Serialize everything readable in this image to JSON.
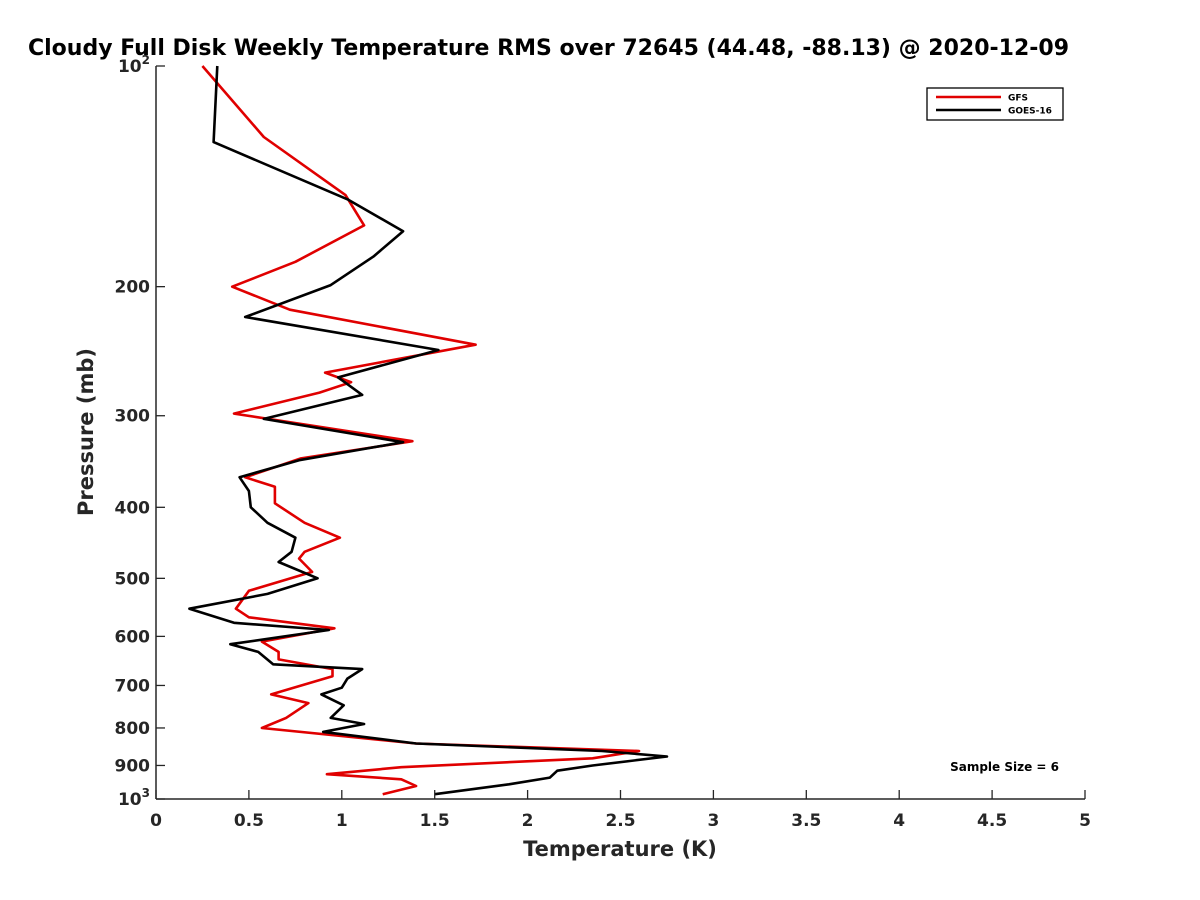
{
  "chart_data": {
    "type": "line",
    "title": "Cloudy Full Disk Weekly Temperature RMS over 72645 (44.48, -88.13) @ 2020-12-09",
    "xlabel": "Temperature (K)",
    "ylabel": "Pressure (mb)",
    "xlim": [
      0,
      5
    ],
    "ylim": [
      100,
      1000
    ],
    "y_scale": "log",
    "y_reversed": true,
    "grid": false,
    "legend_position": "top-right",
    "x_ticks": [
      "0",
      "0.5",
      "1",
      "1.5",
      "2",
      "2.5",
      "3",
      "3.5",
      "4",
      "4.5",
      "5"
    ],
    "y_ticks": [
      {
        "value": 100,
        "base": "10",
        "exp": "2"
      },
      {
        "value": 200,
        "label": "200"
      },
      {
        "value": 300,
        "label": "300"
      },
      {
        "value": 400,
        "label": "400"
      },
      {
        "value": 500,
        "label": "500"
      },
      {
        "value": 600,
        "label": "600"
      },
      {
        "value": 700,
        "label": "700"
      },
      {
        "value": 800,
        "label": "800"
      },
      {
        "value": 900,
        "label": "900"
      },
      {
        "value": 1000,
        "base": "10",
        "exp": "3"
      }
    ],
    "annotation": "Sample Size = 6",
    "series": [
      {
        "name": "GFS",
        "color": "#e00000",
        "points": [
          [
            0.25,
            100
          ],
          [
            0.58,
            125
          ],
          [
            1.02,
            150
          ],
          [
            1.12,
            165
          ],
          [
            0.75,
            185
          ],
          [
            0.41,
            200
          ],
          [
            0.72,
            215
          ],
          [
            1.72,
            240
          ],
          [
            0.91,
            262
          ],
          [
            1.05,
            270
          ],
          [
            0.88,
            279
          ],
          [
            0.42,
            298
          ],
          [
            1.38,
            325
          ],
          [
            0.78,
            343
          ],
          [
            0.48,
            364
          ],
          [
            0.64,
            375
          ],
          [
            0.64,
            395
          ],
          [
            0.8,
            420
          ],
          [
            0.99,
            440
          ],
          [
            0.8,
            460
          ],
          [
            0.77,
            470
          ],
          [
            0.84,
            490
          ],
          [
            0.5,
            520
          ],
          [
            0.43,
            550
          ],
          [
            0.5,
            565
          ],
          [
            0.96,
            585
          ],
          [
            0.57,
            610
          ],
          [
            0.66,
            630
          ],
          [
            0.66,
            645
          ],
          [
            0.95,
            665
          ],
          [
            0.95,
            680
          ],
          [
            0.62,
            720
          ],
          [
            0.82,
            740
          ],
          [
            0.7,
            775
          ],
          [
            0.57,
            800
          ],
          [
            1.4,
            840
          ],
          [
            2.6,
            860
          ],
          [
            2.35,
            880
          ],
          [
            1.32,
            905
          ],
          [
            0.92,
            925
          ],
          [
            1.32,
            940
          ],
          [
            1.4,
            960
          ],
          [
            1.22,
            985
          ]
        ]
      },
      {
        "name": "GOES-16",
        "color": "#000000",
        "points": [
          [
            0.33,
            100
          ],
          [
            0.31,
            127
          ],
          [
            1.03,
            152
          ],
          [
            1.33,
            168
          ],
          [
            1.17,
            182
          ],
          [
            0.94,
            199
          ],
          [
            0.48,
            220
          ],
          [
            1.52,
            244
          ],
          [
            0.98,
            266
          ],
          [
            1.11,
            281
          ],
          [
            0.58,
            303
          ],
          [
            1.33,
            326
          ],
          [
            0.77,
            345
          ],
          [
            0.45,
            364
          ],
          [
            0.5,
            380
          ],
          [
            0.51,
            400
          ],
          [
            0.6,
            420
          ],
          [
            0.75,
            440
          ],
          [
            0.73,
            460
          ],
          [
            0.66,
            475
          ],
          [
            0.87,
            500
          ],
          [
            0.6,
            525
          ],
          [
            0.18,
            550
          ],
          [
            0.42,
            575
          ],
          [
            0.93,
            588
          ],
          [
            0.4,
            615
          ],
          [
            0.55,
            630
          ],
          [
            0.63,
            655
          ],
          [
            1.11,
            665
          ],
          [
            1.03,
            685
          ],
          [
            1.0,
            705
          ],
          [
            0.89,
            720
          ],
          [
            1.01,
            745
          ],
          [
            0.94,
            775
          ],
          [
            1.12,
            790
          ],
          [
            0.9,
            810
          ],
          [
            1.4,
            840
          ],
          [
            2.4,
            860
          ],
          [
            2.75,
            875
          ],
          [
            2.35,
            900
          ],
          [
            2.16,
            915
          ],
          [
            2.12,
            935
          ],
          [
            1.9,
            955
          ],
          [
            1.5,
            985
          ]
        ]
      }
    ]
  }
}
